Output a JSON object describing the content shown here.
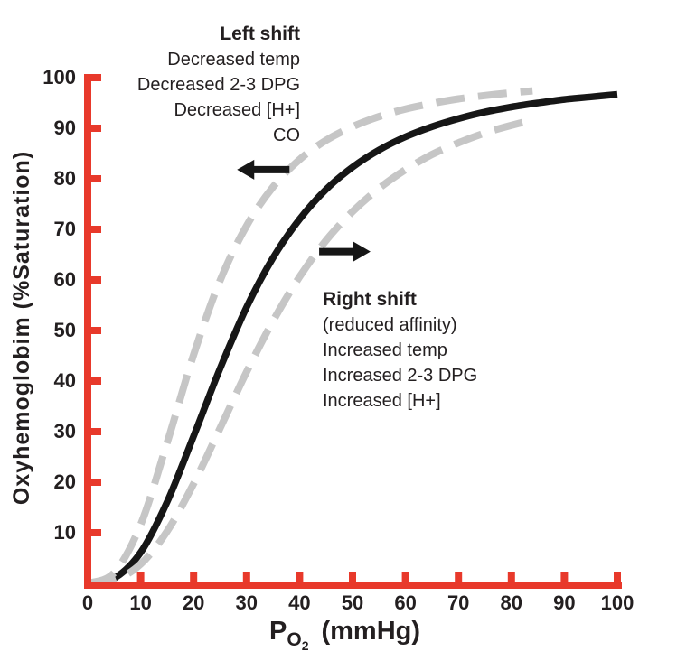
{
  "colors": {
    "axis_red": "#e8392b",
    "curve_black": "#161616",
    "shifted_gray": "#c6c6c6",
    "text": "#231f20",
    "background": "#ffffff"
  },
  "chart_data": {
    "type": "line",
    "title": "",
    "xlabel": {
      "symbol": "P",
      "subscript": "O",
      "subsubscript": "2",
      "unit": "(mmHg)"
    },
    "ylabel": "Oxyhemoglobim (%Saturation)",
    "xlim": [
      0,
      100
    ],
    "ylim": [
      0,
      100
    ],
    "x_ticks": [
      0,
      10,
      20,
      30,
      40,
      50,
      60,
      70,
      80,
      90,
      100
    ],
    "y_ticks": [
      10,
      20,
      30,
      40,
      50,
      60,
      70,
      80,
      90,
      100
    ],
    "grid": false,
    "legend": "none",
    "series": [
      {
        "name": "normal-curve",
        "style": "solid",
        "color": "#161616",
        "width": 7.5,
        "points": [
          [
            0,
            0
          ],
          [
            5,
            1
          ],
          [
            10,
            6.1
          ],
          [
            15,
            16.1
          ],
          [
            20,
            29.1
          ],
          [
            25,
            42.5
          ],
          [
            30,
            54.6
          ],
          [
            35,
            64.4
          ],
          [
            40,
            72
          ],
          [
            45,
            77.9
          ],
          [
            50,
            82.3
          ],
          [
            55,
            85.7
          ],
          [
            60,
            88.3
          ],
          [
            65,
            90.3
          ],
          [
            70,
            91.9
          ],
          [
            75,
            93.2
          ],
          [
            80,
            94.2
          ],
          [
            85,
            95
          ],
          [
            90,
            95.7
          ],
          [
            95,
            96.2
          ],
          [
            100,
            96.7
          ]
        ]
      },
      {
        "name": "left-shifted-curve",
        "style": "dashed",
        "color": "#c6c6c6",
        "width": 8,
        "points": [
          [
            0,
            0
          ],
          [
            5,
            2.1
          ],
          [
            10,
            11.6
          ],
          [
            15,
            27.8
          ],
          [
            20,
            45.2
          ],
          [
            25,
            59.9
          ],
          [
            30,
            70.7
          ],
          [
            35,
            78.4
          ],
          [
            40,
            83.8
          ],
          [
            45,
            87.6
          ],
          [
            50,
            90.3
          ],
          [
            55,
            92.3
          ],
          [
            60,
            93.8
          ],
          [
            65,
            94.9
          ],
          [
            70,
            95.8
          ],
          [
            77,
            96.7
          ],
          [
            84,
            97.4
          ]
        ]
      },
      {
        "name": "right-shifted-curve",
        "style": "dashed",
        "color": "#c6c6c6",
        "width": 8,
        "points": [
          [
            0,
            0
          ],
          [
            5,
            0.6
          ],
          [
            10,
            3.8
          ],
          [
            15,
            10.3
          ],
          [
            20,
            19.7
          ],
          [
            25,
            30.7
          ],
          [
            30,
            41.8
          ],
          [
            35,
            51.9
          ],
          [
            40,
            60.6
          ],
          [
            45,
            67.8
          ],
          [
            50,
            73.5
          ],
          [
            55,
            78.1
          ],
          [
            60,
            81.8
          ],
          [
            65,
            84.8
          ],
          [
            70,
            87.1
          ],
          [
            76,
            89.4
          ],
          [
            83,
            91.4
          ]
        ]
      }
    ],
    "annotations": {
      "left_shift": {
        "heading": "Left shift",
        "lines": [
          "Decreased temp",
          "Decreased 2-3 DPG",
          "Decreased [H+]",
          "CO"
        ]
      },
      "right_shift": {
        "heading": "Right shift",
        "lines": [
          "(reduced affinity)",
          "Increased temp",
          "Increased 2-3 DPG",
          "Increased [H+]"
        ]
      },
      "arrows": [
        {
          "name": "left-shift-arrow",
          "direction": "left",
          "x_tail": 38.1,
          "x_tip": 28.2,
          "y": 81.8
        },
        {
          "name": "right-shift-arrow",
          "direction": "right",
          "x_tail": 43.7,
          "x_tip": 53.4,
          "y": 65.6
        }
      ]
    }
  }
}
